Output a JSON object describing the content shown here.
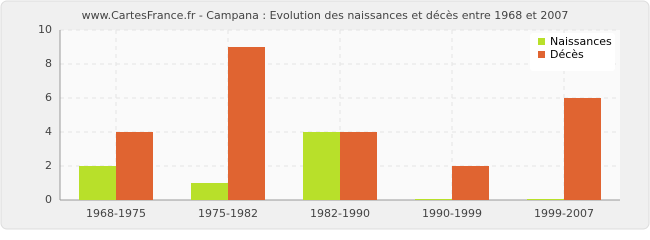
{
  "chart_data": {
    "type": "bar",
    "title": "www.CartesFrance.fr - Campana : Evolution des naissances et décès entre 1968 et 2007",
    "categories": [
      "1968-1975",
      "1975-1982",
      "1982-1990",
      "1990-1999",
      "1999-2007"
    ],
    "series": [
      {
        "name": "Naissances",
        "color": "#b8e02a",
        "values": [
          2,
          1,
          4,
          0,
          0
        ]
      },
      {
        "name": "Décès",
        "color": "#e06431",
        "values": [
          4,
          9,
          4,
          2,
          6
        ]
      }
    ],
    "ylim": [
      0,
      10
    ],
    "yticks": [
      0,
      2,
      4,
      6,
      8,
      10
    ],
    "grid": true,
    "legend": "top-right"
  }
}
